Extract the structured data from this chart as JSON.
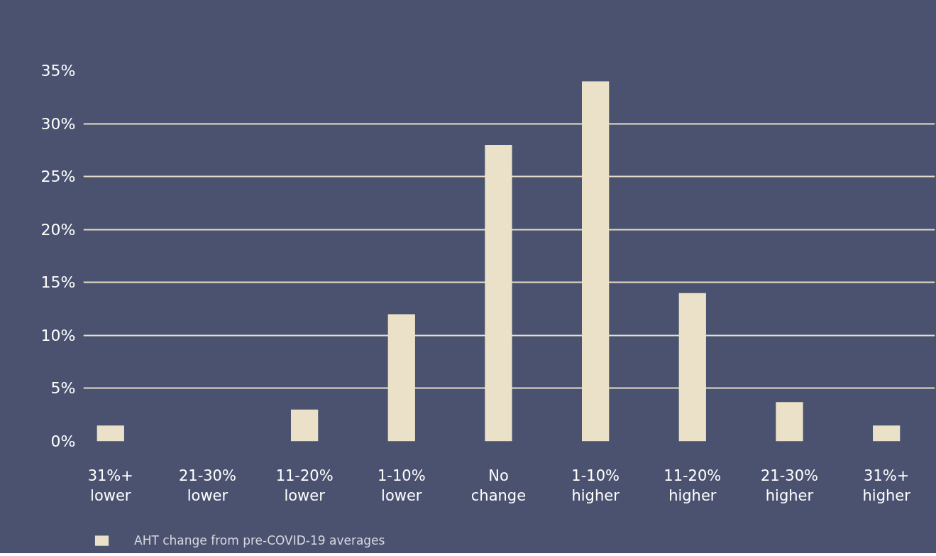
{
  "chart_data": {
    "type": "bar",
    "categories": [
      "31%+\nlower",
      "21-30%\nlower",
      "11-20%\nlower",
      "1-10%\nlower",
      "No\nchange",
      "1-10%\nhigher",
      "11-20%\nhigher",
      "21-30%\nhigher",
      "31%+\nhigher"
    ],
    "series": [
      {
        "name": "AHT change from pre-COVID-19 averages",
        "color": "#ebe0c8",
        "values": [
          1.5,
          0,
          3,
          12,
          28,
          34,
          14,
          3.7,
          1.5
        ]
      }
    ],
    "ylim": [
      0,
      35
    ],
    "yticks": [
      {
        "value": 0,
        "label": "0%"
      },
      {
        "value": 5,
        "label": "5%"
      },
      {
        "value": 10,
        "label": "10%"
      },
      {
        "value": 15,
        "label": "15%"
      },
      {
        "value": 20,
        "label": "20%"
      },
      {
        "value": 25,
        "label": "25%"
      },
      {
        "value": 30,
        "label": "30%"
      },
      {
        "value": 35,
        "label": "35%"
      }
    ],
    "grid": "y",
    "legend": "bottom left"
  }
}
